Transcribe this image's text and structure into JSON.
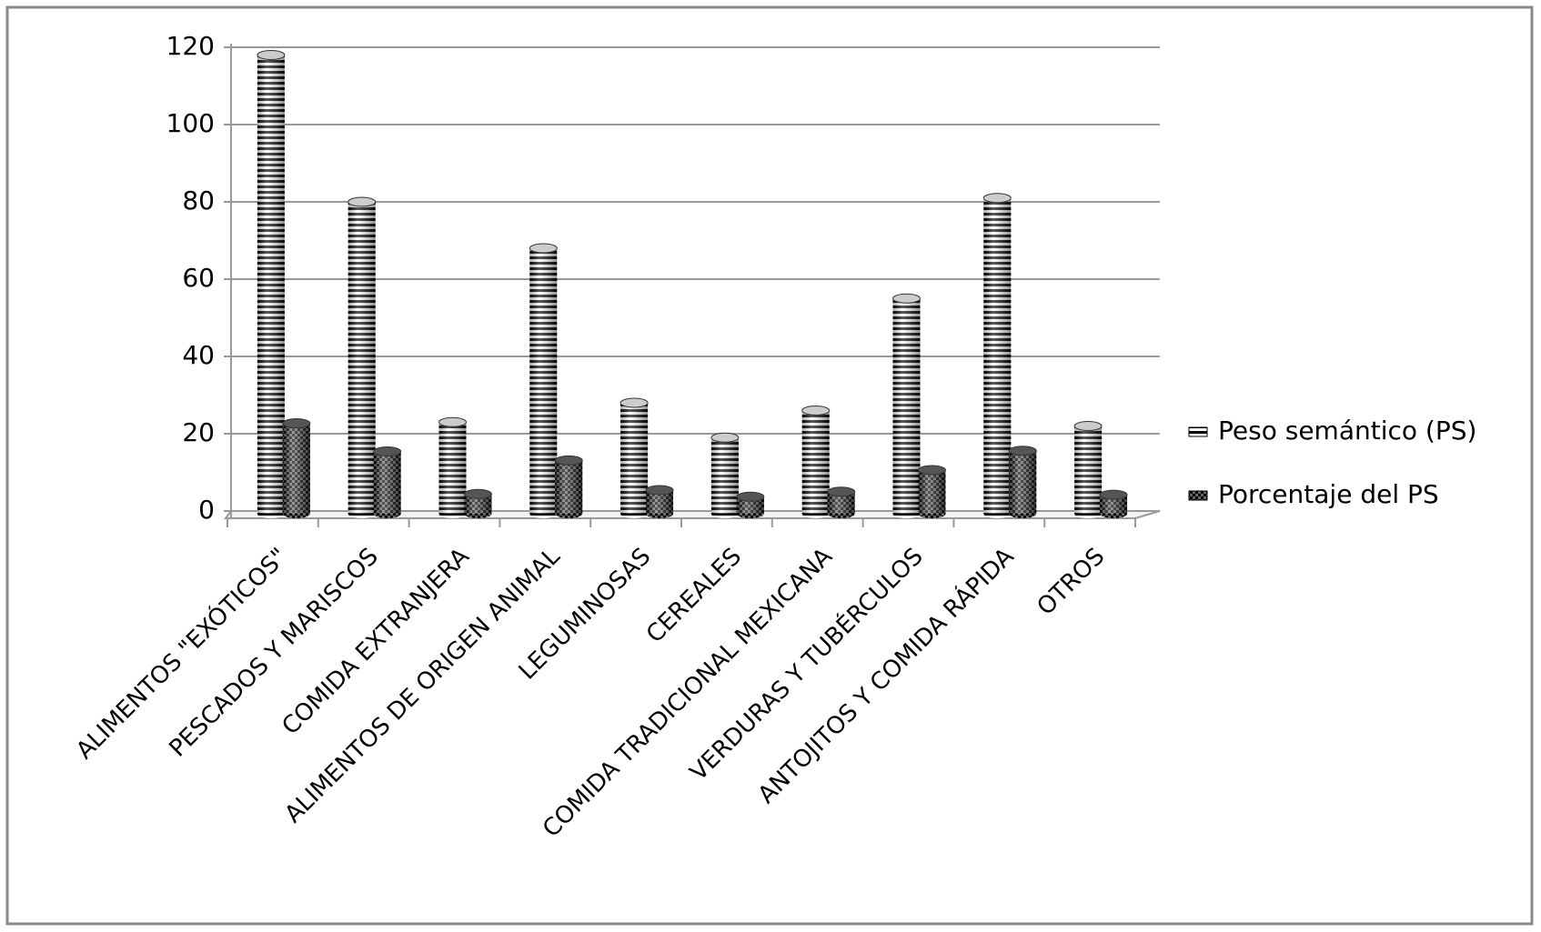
{
  "chart_data": {
    "type": "bar3d",
    "categories": [
      "ALIMENTOS \"EXÓTICOS\"",
      "PESCADOS Y MARISCOS",
      "COMIDA EXTRANJERA",
      "ALIMENTOS DE ORIGEN ANIMAL",
      "LEGUMINOSAS",
      "CEREALES",
      "COMIDA TRADICIONAL MEXICANA",
      "VERDURAS Y TUBÉRCULOS",
      "ANTOJITOS Y COMIDA RÁPIDA",
      "OTROS"
    ],
    "series": [
      {
        "name": "Peso semántico (PS)",
        "color": "#000000",
        "values": [
          118,
          80,
          23,
          68,
          28,
          19,
          26,
          55,
          81,
          22
        ]
      },
      {
        "name": "Porcentaje del PS",
        "color": "#000000",
        "values": [
          22.7,
          15.4,
          4.4,
          13.1,
          5.4,
          3.7,
          5,
          10.6,
          15.6,
          4.2
        ]
      }
    ],
    "ylim": [
      0,
      120
    ],
    "yticks": [
      0,
      20,
      40,
      60,
      80,
      100,
      120
    ],
    "grid": true,
    "legend": "right"
  }
}
